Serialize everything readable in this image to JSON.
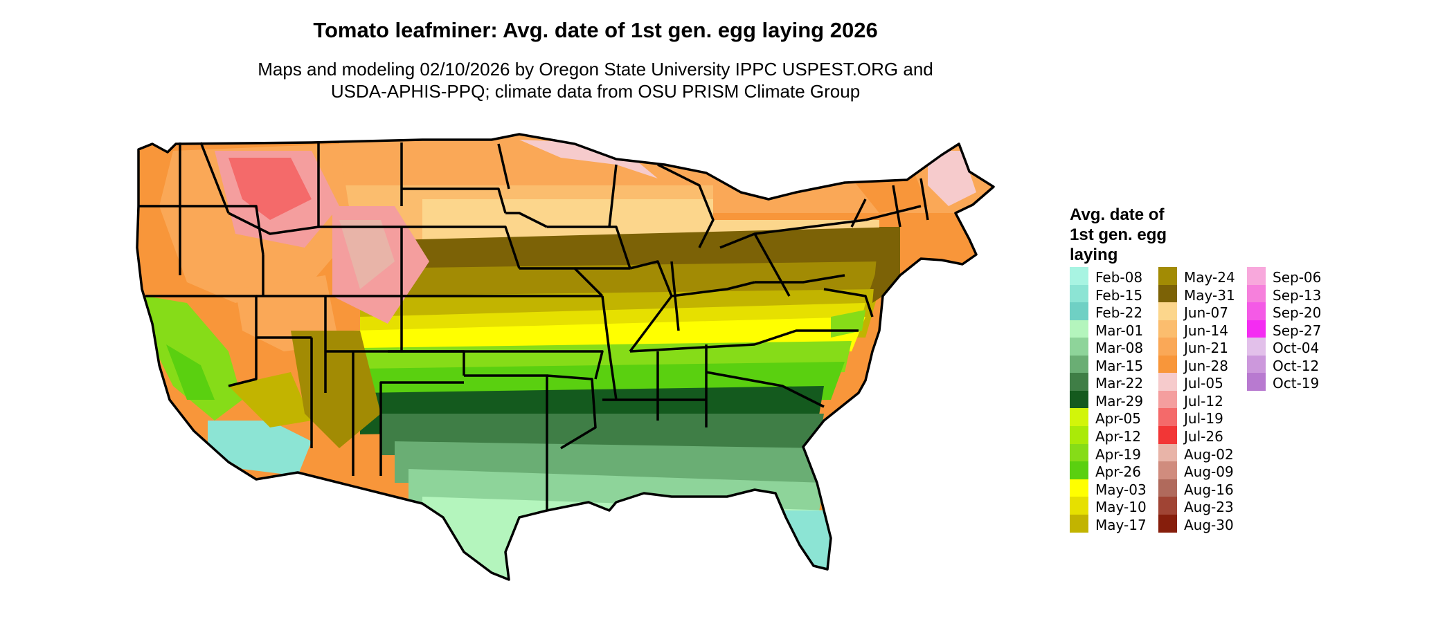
{
  "title": "Tomato leafminer: Avg. date of 1st gen. egg laying 2026",
  "subtitle_line1": "Maps and modeling 02/10/2026 by Oregon State University IPPC USPEST.ORG and",
  "subtitle_line2": "USDA-APHIS-PPQ; climate data from OSU PRISM Climate Group",
  "legend": {
    "title_lines": [
      "Avg. date of",
      "1st gen. egg",
      "laying"
    ],
    "items": [
      {
        "label": "Feb-08",
        "color": "#a8f4e2"
      },
      {
        "label": "Feb-15",
        "color": "#8ce4d4"
      },
      {
        "label": "Feb-22",
        "color": "#6fd0c4"
      },
      {
        "label": "Mar-01",
        "color": "#b4f5bd"
      },
      {
        "label": "Mar-08",
        "color": "#8ed49a"
      },
      {
        "label": "Mar-15",
        "color": "#6aae74"
      },
      {
        "label": "Mar-22",
        "color": "#3f7e46"
      },
      {
        "label": "Mar-29",
        "color": "#145a1e"
      },
      {
        "label": "Apr-05",
        "color": "#d2f50a"
      },
      {
        "label": "Apr-12",
        "color": "#aaea08"
      },
      {
        "label": "Apr-19",
        "color": "#86dc18"
      },
      {
        "label": "Apr-26",
        "color": "#5ad010"
      },
      {
        "label": "May-03",
        "color": "#ffff00"
      },
      {
        "label": "May-10",
        "color": "#e6e000"
      },
      {
        "label": "May-17",
        "color": "#c2b400"
      },
      {
        "label": "May-24",
        "color": "#a28b04"
      },
      {
        "label": "May-31",
        "color": "#7c6206"
      },
      {
        "label": "Jun-07",
        "color": "#fcd68c"
      },
      {
        "label": "Jun-14",
        "color": "#fbbd6e"
      },
      {
        "label": "Jun-21",
        "color": "#faa857"
      },
      {
        "label": "Jun-28",
        "color": "#f8963a"
      },
      {
        "label": "Jul-05",
        "color": "#f6cbcc"
      },
      {
        "label": "Jul-12",
        "color": "#f49e9e"
      },
      {
        "label": "Jul-19",
        "color": "#f46a6a"
      },
      {
        "label": "Jul-26",
        "color": "#f23636"
      },
      {
        "label": "Aug-02",
        "color": "#e8b4a8"
      },
      {
        "label": "Aug-09",
        "color": "#d08c7e"
      },
      {
        "label": "Aug-16",
        "color": "#b06a5c"
      },
      {
        "label": "Aug-23",
        "color": "#a04434"
      },
      {
        "label": "Aug-30",
        "color": "#861e0c"
      },
      {
        "label": "Sep-06",
        "color": "#f8a8dc"
      },
      {
        "label": "Sep-13",
        "color": "#f680dc"
      },
      {
        "label": "Sep-20",
        "color": "#f45ae6"
      },
      {
        "label": "Sep-27",
        "color": "#f42cf2"
      },
      {
        "label": "Oct-04",
        "color": "#e2c0ea"
      },
      {
        "label": "Oct-12",
        "color": "#cc98dc"
      },
      {
        "label": "Oct-19",
        "color": "#b87ad0"
      }
    ]
  }
}
